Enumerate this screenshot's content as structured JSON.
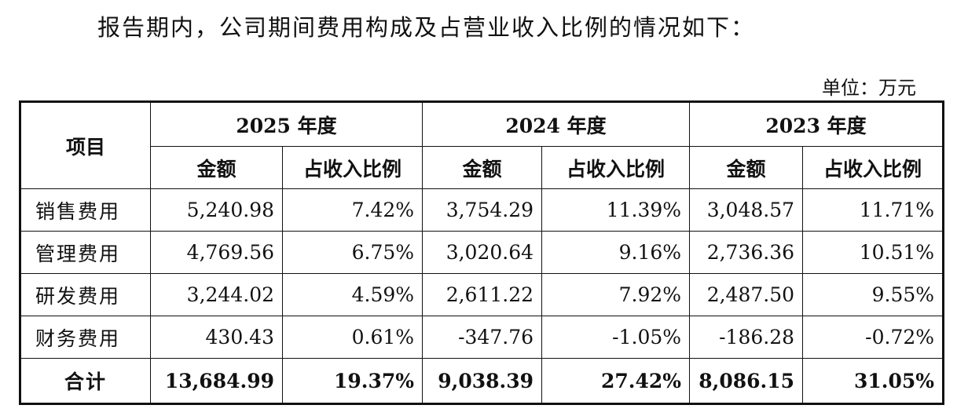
{
  "intro_text": "报告期内，公司期间费用构成及占营业收入比例的情况如下：",
  "unit_label": "单位：万元",
  "table": {
    "item_header": "项目",
    "years": [
      "2025 年度",
      "2024 年度",
      "2023 年度"
    ],
    "sub_headers": {
      "amount": "金额",
      "ratio": "占收入比例"
    },
    "rows": [
      {
        "item": "销售费用",
        "values": [
          "5,240.98",
          "7.42%",
          "3,754.29",
          "11.39%",
          "3,048.57",
          "11.71%"
        ]
      },
      {
        "item": "管理费用",
        "values": [
          "4,769.56",
          "6.75%",
          "3,020.64",
          "9.16%",
          "2,736.36",
          "10.51%"
        ]
      },
      {
        "item": "研发费用",
        "values": [
          "3,244.02",
          "4.59%",
          "2,611.22",
          "7.92%",
          "2,487.50",
          "9.55%"
        ]
      },
      {
        "item": "财务费用",
        "values": [
          "430.43",
          "0.61%",
          "-347.76",
          "-1.05%",
          "-186.28",
          "-0.72%"
        ]
      }
    ],
    "total": {
      "item": "合计",
      "values": [
        "13,684.99",
        "19.37%",
        "9,038.39",
        "27.42%",
        "8,086.15",
        "31.05%"
      ]
    }
  }
}
